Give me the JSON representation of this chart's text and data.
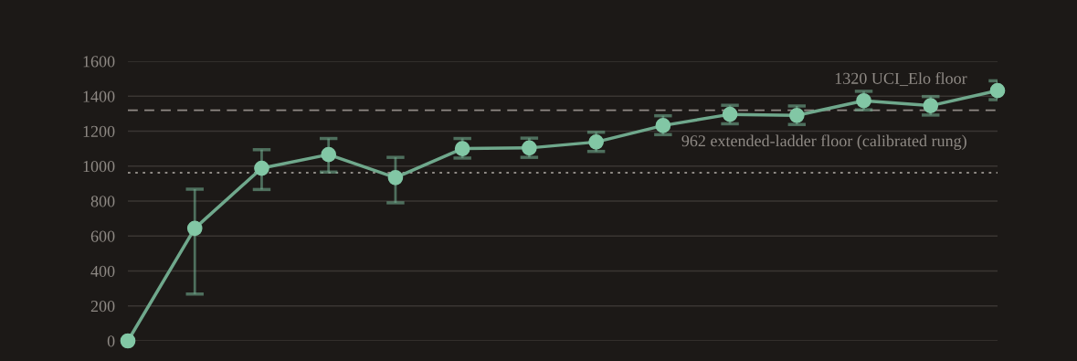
{
  "chart_data": {
    "type": "line",
    "categories": [
      null,
      null,
      null,
      null,
      null,
      null,
      null,
      null,
      null,
      null,
      null,
      null,
      null,
      null
    ],
    "series": [
      {
        "color": "#6fa88c",
        "values": [
          0,
          644,
          988,
          1066,
          934,
          1100,
          1104,
          1138,
          1232,
          1296,
          1290,
          1374,
          1346,
          1432
        ],
        "errors": [
          null,
          [
            268,
            868
          ],
          [
            866,
            1094
          ],
          [
            966,
            1158
          ],
          [
            790,
            1050
          ],
          [
            1046,
            1158
          ],
          [
            1050,
            1160
          ],
          [
            1084,
            1194
          ],
          [
            1180,
            1288
          ],
          [
            1242,
            1348
          ],
          [
            1238,
            1344
          ],
          [
            1322,
            1428
          ],
          [
            1292,
            1398
          ],
          [
            1380,
            1488
          ]
        ]
      }
    ],
    "ylim": [
      0,
      1600
    ],
    "yticks": [
      0,
      200,
      400,
      600,
      800,
      1000,
      1200,
      1400,
      1600
    ],
    "grid": "y",
    "marker": "circle",
    "line_style": "solid",
    "tick_labels": "y",
    "ref_lines": [
      {
        "axis": "y",
        "value": 1320,
        "label": "1320 UCI_Elo floor",
        "color": "#8f8a85",
        "line_style": "dashed"
      },
      {
        "axis": "y",
        "value": 962,
        "label": "962 extended-ladder floor (calibrated rung)",
        "color": "#8f8a85",
        "line_style": "dotted"
      }
    ]
  }
}
